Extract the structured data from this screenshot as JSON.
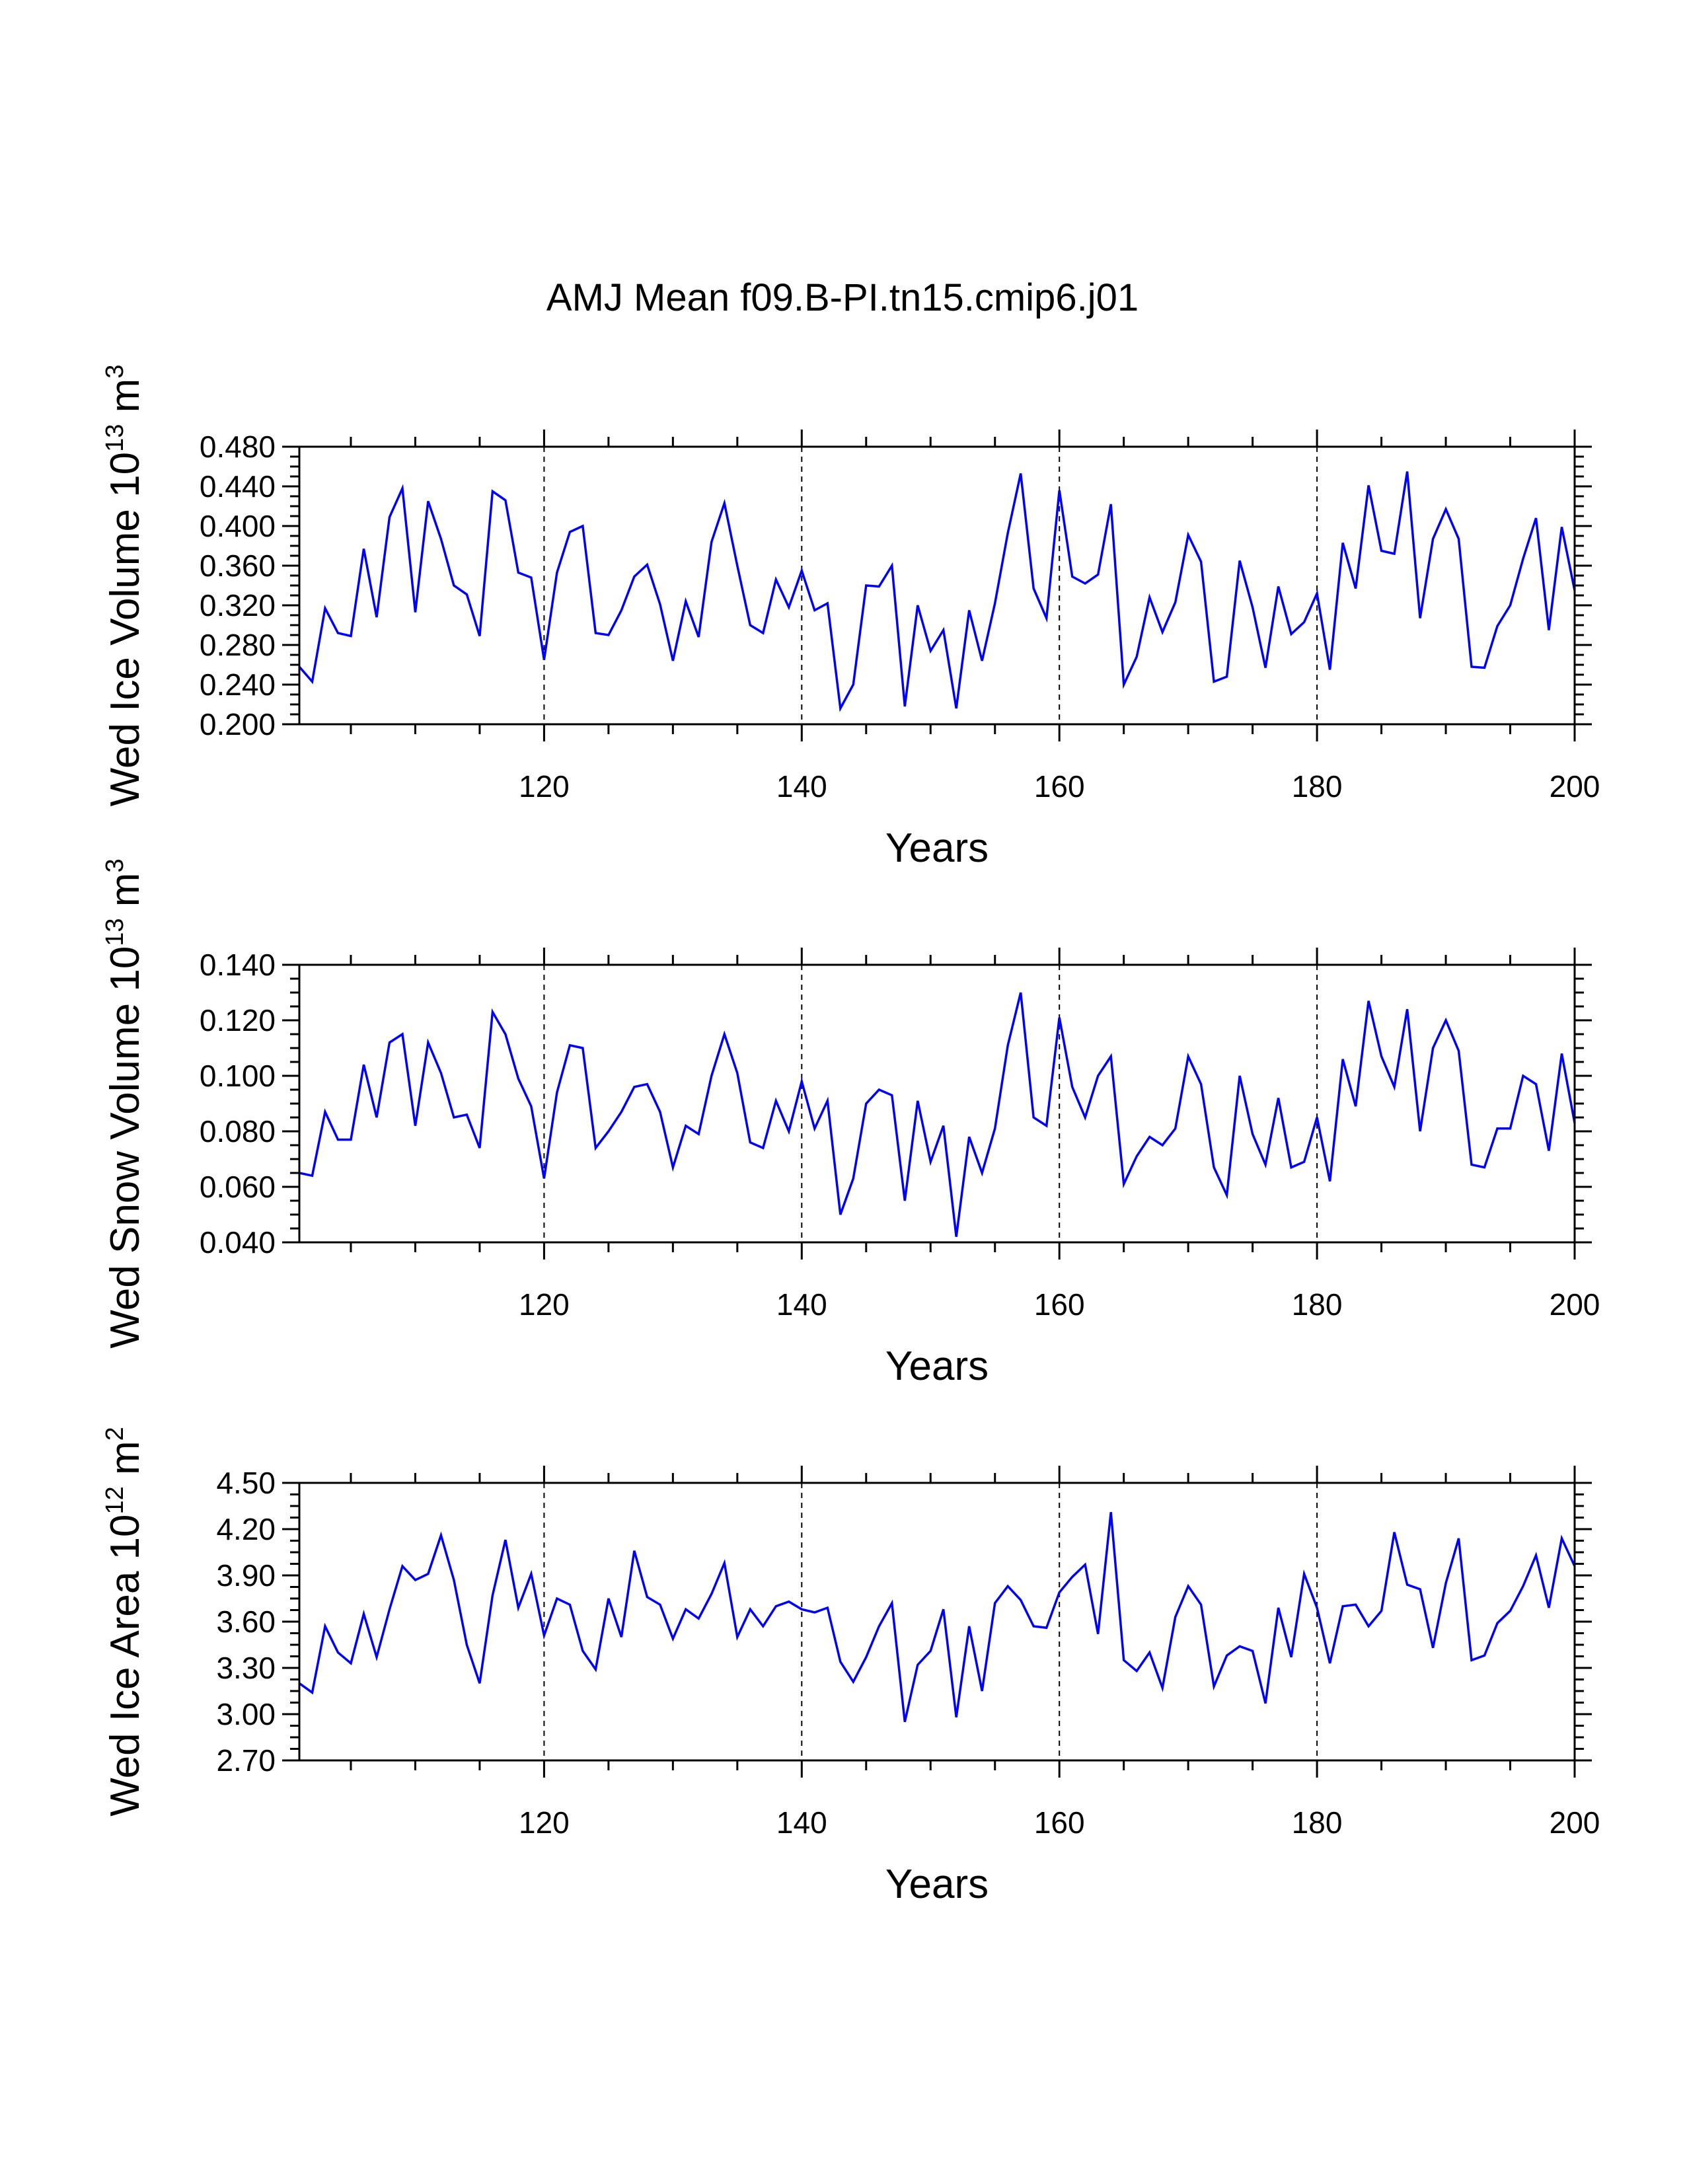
{
  "title": "AMJ Mean f09.B-PI.tn15.cmip6.j01",
  "colors": {
    "series": "#0000ff",
    "axes": "#000000",
    "refline": "#000000"
  },
  "chart_data": [
    {
      "type": "line",
      "title": "AMJ Mean f09.B-PI.tn15.cmip6.j01",
      "xlabel": "Years",
      "ylabel": {
        "main": "Wed Ice Volume 10",
        "exp": "13",
        "unit": " m",
        "unit_exp": "3"
      },
      "ylim": [
        0.2,
        0.48
      ],
      "yticks": [
        "0.200",
        "0.240",
        "0.280",
        "0.320",
        "0.360",
        "0.400",
        "0.440",
        "0.480"
      ],
      "xlim": [
        101,
        200
      ],
      "xticks": [
        "120",
        "140",
        "160",
        "180",
        "200"
      ],
      "reference_lines_x": [
        120,
        140,
        160,
        180
      ],
      "series": [
        {
          "name": "Wed Ice Volume",
          "x_start": 101,
          "values": [
            0.258,
            0.243,
            0.317,
            0.292,
            0.289,
            0.377,
            0.308,
            0.409,
            0.438,
            0.313,
            0.425,
            0.387,
            0.34,
            0.331,
            0.289,
            0.435,
            0.426,
            0.353,
            0.348,
            0.265,
            0.353,
            0.394,
            0.4,
            0.292,
            0.29,
            0.315,
            0.349,
            0.361,
            0.321,
            0.264,
            0.324,
            0.288,
            0.384,
            0.423,
            0.36,
            0.3,
            0.292,
            0.346,
            0.318,
            0.355,
            0.315,
            0.322,
            0.216,
            0.24,
            0.34,
            0.339,
            0.36,
            0.218,
            0.32,
            0.274,
            0.295,
            0.216,
            0.315,
            0.264,
            0.322,
            0.393,
            0.453,
            0.337,
            0.307,
            0.436,
            0.349,
            0.342,
            0.351,
            0.422,
            0.24,
            0.268,
            0.328,
            0.293,
            0.323,
            0.391,
            0.364,
            0.243,
            0.248,
            0.365,
            0.318,
            0.257,
            0.339,
            0.291,
            0.303,
            0.332,
            0.255,
            0.383,
            0.337,
            0.441,
            0.375,
            0.372,
            0.455,
            0.307,
            0.387,
            0.417,
            0.387,
            0.258,
            0.257,
            0.299,
            0.32,
            0.367,
            0.408,
            0.295,
            0.399,
            0.335
          ]
        }
      ]
    },
    {
      "type": "line",
      "xlabel": "Years",
      "ylabel": {
        "main": "Wed Snow Volume 10",
        "exp": "13",
        "unit": " m",
        "unit_exp": "3"
      },
      "ylim": [
        0.04,
        0.14
      ],
      "yticks": [
        "0.040",
        "0.060",
        "0.080",
        "0.100",
        "0.120",
        "0.140"
      ],
      "xlim": [
        101,
        200
      ],
      "xticks": [
        "120",
        "140",
        "160",
        "180",
        "200"
      ],
      "reference_lines_x": [
        120,
        140,
        160,
        180
      ],
      "series": [
        {
          "name": "Wed Snow Volume",
          "x_start": 101,
          "values": [
            0.065,
            0.064,
            0.087,
            0.077,
            0.077,
            0.104,
            0.085,
            0.112,
            0.115,
            0.082,
            0.112,
            0.101,
            0.085,
            0.086,
            0.074,
            0.123,
            0.115,
            0.099,
            0.089,
            0.063,
            0.094,
            0.111,
            0.11,
            0.074,
            0.08,
            0.087,
            0.096,
            0.097,
            0.087,
            0.067,
            0.082,
            0.079,
            0.1,
            0.115,
            0.101,
            0.076,
            0.074,
            0.091,
            0.08,
            0.098,
            0.081,
            0.091,
            0.05,
            0.063,
            0.09,
            0.095,
            0.093,
            0.055,
            0.091,
            0.069,
            0.082,
            0.042,
            0.078,
            0.065,
            0.081,
            0.111,
            0.13,
            0.085,
            0.082,
            0.121,
            0.096,
            0.085,
            0.1,
            0.107,
            0.061,
            0.071,
            0.078,
            0.075,
            0.081,
            0.107,
            0.097,
            0.067,
            0.057,
            0.1,
            0.079,
            0.068,
            0.092,
            0.067,
            0.069,
            0.085,
            0.062,
            0.106,
            0.089,
            0.127,
            0.107,
            0.096,
            0.124,
            0.08,
            0.11,
            0.12,
            0.109,
            0.068,
            0.067,
            0.081,
            0.081,
            0.1,
            0.097,
            0.073,
            0.108,
            0.083
          ]
        }
      ]
    },
    {
      "type": "line",
      "xlabel": "Years",
      "ylabel": {
        "main": "Wed Ice Area 10",
        "exp": "12",
        "unit": " m",
        "unit_exp": "2"
      },
      "ylim": [
        2.7,
        4.5
      ],
      "yticks": [
        "2.70",
        "3.00",
        "3.30",
        "3.60",
        "3.90",
        "4.20",
        "4.50"
      ],
      "xlim": [
        101,
        200
      ],
      "xticks": [
        "120",
        "140",
        "160",
        "180",
        "200"
      ],
      "reference_lines_x": [
        120,
        140,
        160,
        180
      ],
      "series": [
        {
          "name": "Wed Ice Area",
          "x_start": 101,
          "values": [
            3.2,
            3.14,
            3.57,
            3.4,
            3.33,
            3.65,
            3.37,
            3.68,
            3.96,
            3.87,
            3.91,
            4.16,
            3.87,
            3.45,
            3.2,
            3.77,
            4.13,
            3.69,
            3.91,
            3.51,
            3.75,
            3.71,
            3.41,
            3.29,
            3.75,
            3.5,
            4.06,
            3.76,
            3.71,
            3.49,
            3.68,
            3.62,
            3.78,
            3.98,
            3.5,
            3.68,
            3.57,
            3.7,
            3.73,
            3.68,
            3.66,
            3.69,
            3.34,
            3.21,
            3.37,
            3.57,
            3.72,
            2.95,
            3.32,
            3.41,
            3.68,
            2.98,
            3.57,
            3.15,
            3.72,
            3.83,
            3.74,
            3.57,
            3.56,
            3.79,
            3.89,
            3.97,
            3.52,
            4.31,
            3.35,
            3.28,
            3.4,
            3.17,
            3.63,
            3.83,
            3.71,
            3.18,
            3.38,
            3.44,
            3.41,
            3.07,
            3.69,
            3.37,
            3.91,
            3.69,
            3.33,
            3.7,
            3.71,
            3.57,
            3.67,
            4.18,
            3.84,
            3.81,
            3.43,
            3.85,
            4.14,
            3.35,
            3.38,
            3.59,
            3.67,
            3.83,
            4.03,
            3.69,
            4.14,
            3.96
          ]
        }
      ]
    }
  ]
}
